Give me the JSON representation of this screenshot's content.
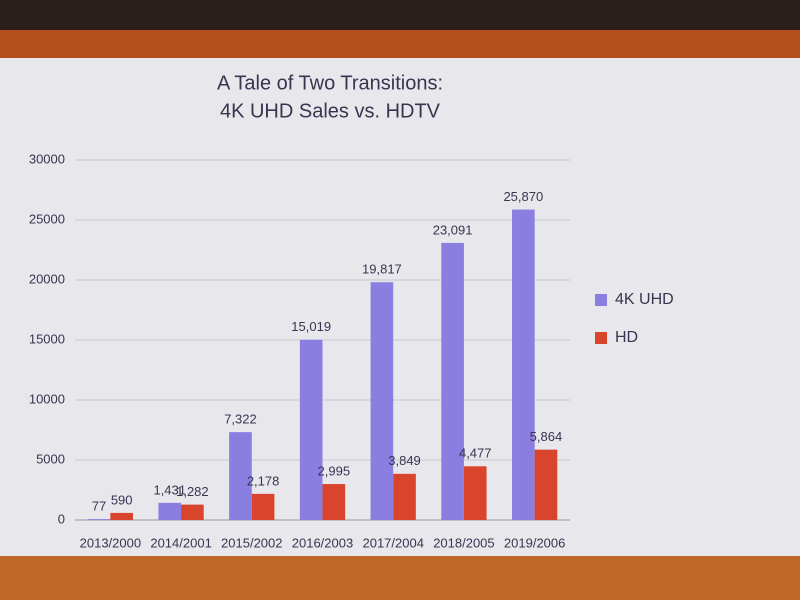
{
  "chart_data": {
    "type": "bar",
    "title": "A Tale of Two Transitions:",
    "subtitle": "4K UHD Sales vs. HDTV",
    "categories": [
      "2013/2000",
      "2014/2001",
      "2015/2002",
      "2016/2003",
      "2017/2004",
      "2018/2005",
      "2019/2006"
    ],
    "series": [
      {
        "name": "4K UHD",
        "color": "#8a7fe0",
        "values": [
          77,
          1431,
          7322,
          15019,
          19817,
          23091,
          25870
        ],
        "value_labels": [
          "77",
          "1,431",
          "7,322",
          "15,019",
          "19,817",
          "23,091",
          "25,870"
        ]
      },
      {
        "name": "HD",
        "color": "#d8452c",
        "values": [
          590,
          1282,
          2178,
          2995,
          3849,
          4477,
          5864
        ],
        "value_labels": [
          "590",
          "1,282",
          "2,178",
          "2,995",
          "3,849",
          "4,477",
          "5,864"
        ]
      }
    ],
    "ylim": [
      0,
      30000
    ],
    "yticks": [
      0,
      5000,
      10000,
      15000,
      20000,
      25000,
      30000
    ],
    "grid": true,
    "legend": "right"
  }
}
